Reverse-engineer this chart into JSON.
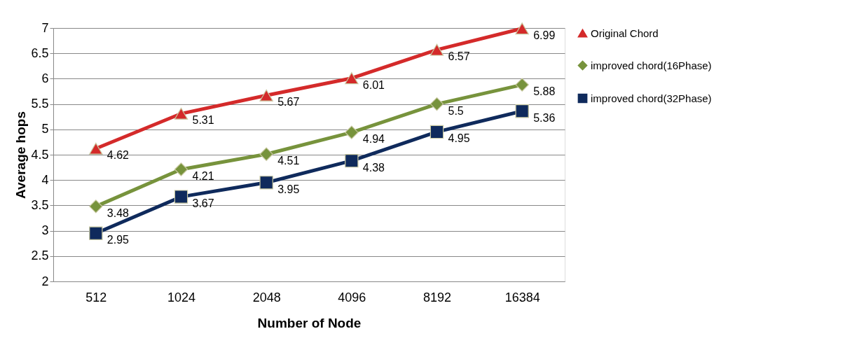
{
  "chart_data": {
    "type": "line",
    "xlabel": "Number of Node",
    "ylabel": "Average hops",
    "categories": [
      "512",
      "1024",
      "2048",
      "4096",
      "8192",
      "16384"
    ],
    "series": [
      {
        "name": "Original Chord",
        "color": "#d42a2a",
        "marker": "triangle",
        "values": [
          4.62,
          5.31,
          5.67,
          6.01,
          6.57,
          6.99
        ]
      },
      {
        "name": "improved chord(16Phase)",
        "color": "#77933c",
        "marker": "diamond",
        "values": [
          3.48,
          4.21,
          4.51,
          4.94,
          5.5,
          5.88
        ]
      },
      {
        "name": "improved chord(32Phase)",
        "color": "#0f2a5c",
        "marker": "square",
        "values": [
          2.95,
          3.67,
          3.95,
          4.38,
          4.95,
          5.36
        ]
      }
    ],
    "ylim": [
      2,
      7
    ],
    "yticks": [
      2,
      2.5,
      3,
      3.5,
      4,
      4.5,
      5,
      5.5,
      6,
      6.5,
      7
    ],
    "grid": "y",
    "legend": "right",
    "data_labels": true,
    "line_style": "solid"
  }
}
